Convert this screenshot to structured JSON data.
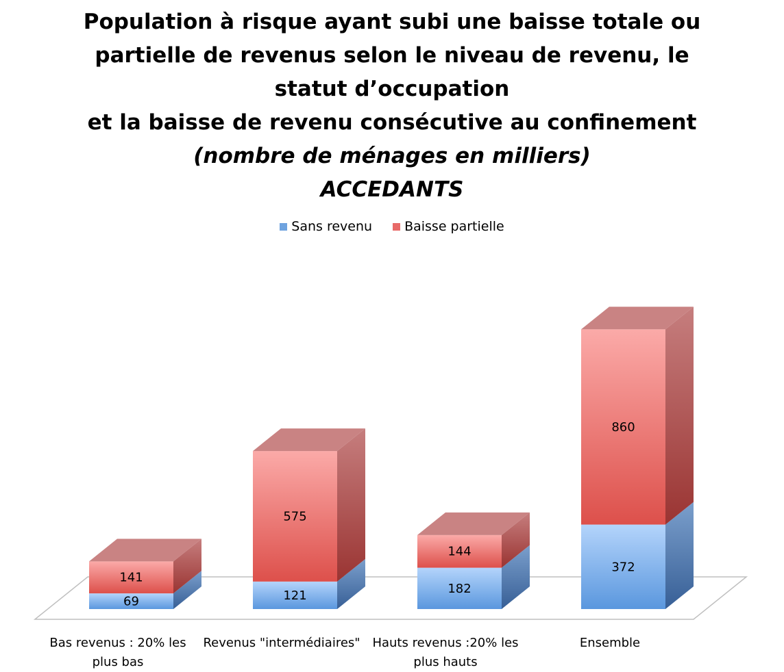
{
  "chart_data": {
    "type": "bar",
    "stacked": true,
    "style": "3d",
    "title_lines": [
      "Population à risque ayant subi une baisse totale ou",
      "partielle de revenus selon le niveau de revenu, le",
      "statut d’occupation",
      "et la baisse de revenu consécutive au confinement"
    ],
    "subtitle_lines": [
      "(nombre de ménages en milliers)",
      "ACCEDANTS"
    ],
    "categories": [
      "Bas revenus : 20% les plus bas",
      "Revenus \"intermédiaires\"",
      "Hauts revenus :20% les plus hauts",
      "Ensemble"
    ],
    "series": [
      {
        "name": "Sans revenu",
        "values": [
          69,
          121,
          182,
          372
        ],
        "color": "#7aaee8"
      },
      {
        "name": "Baisse partielle",
        "values": [
          141,
          575,
          144,
          860
        ],
        "color": "#e85c5a"
      }
    ],
    "legend_position": "top",
    "grid": false,
    "xlabel": "",
    "ylabel": "",
    "ylim": [
      0,
      1300
    ]
  }
}
